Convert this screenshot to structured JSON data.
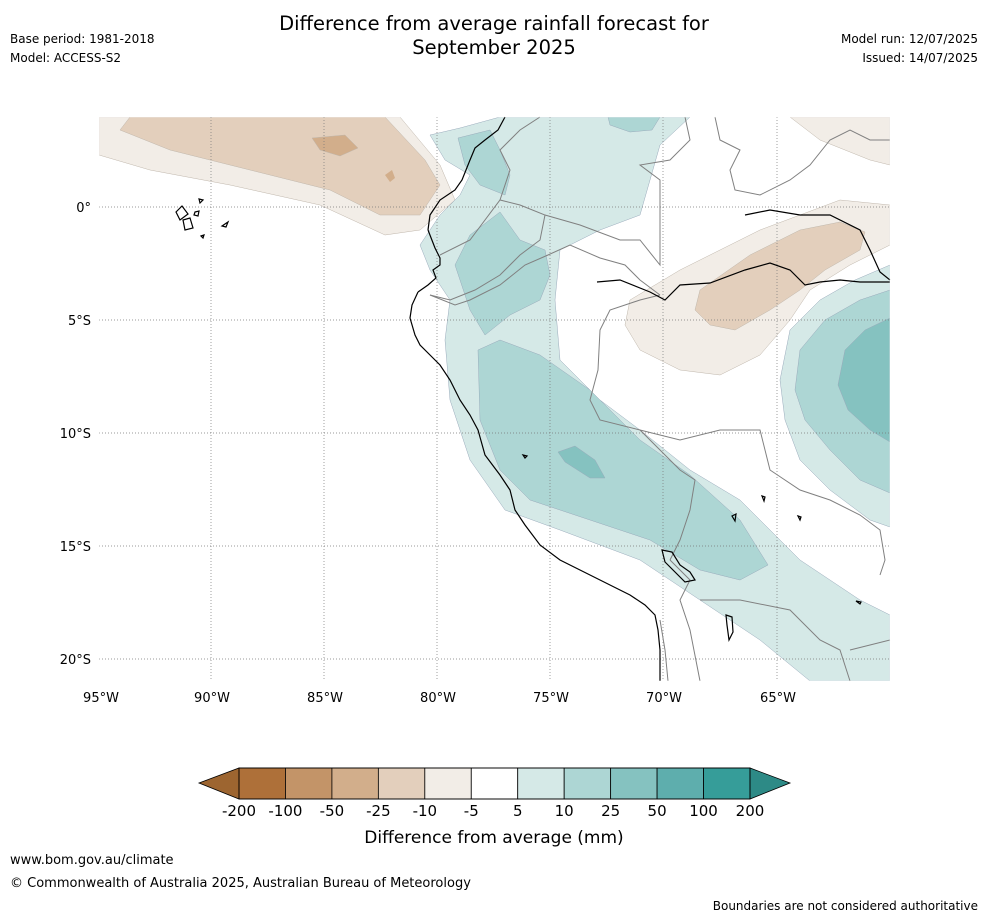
{
  "header": {
    "title_line1": "Difference from average rainfall forecast for",
    "title_line2": "September 2025",
    "base_period": "Base period: 1981-2018",
    "model": "Model: ACCESS-S2",
    "model_run": "Model run: 12/07/2025",
    "issued": "Issued: 14/07/2025"
  },
  "map": {
    "lon_labels": [
      "95°W",
      "90°W",
      "85°W",
      "80°W",
      "75°W",
      "70°W",
      "65°W"
    ],
    "lat_labels": [
      "0°",
      "5°S",
      "10°S",
      "15°S",
      "20°S"
    ],
    "extent": {
      "lon": [
        -95,
        -60
      ],
      "lat": [
        -21,
        4
      ]
    },
    "gridlines": "dotted"
  },
  "colorbar": {
    "label": "Difference from average (mm)",
    "ticks": [
      "-200",
      "-100",
      "-50",
      "-25",
      "-10",
      "-5",
      "5",
      "10",
      "25",
      "50",
      "100",
      "200"
    ],
    "colors": [
      "#ae7039",
      "#c39468",
      "#d2ae8b",
      "#e3cfbc",
      "#f2ede7",
      "#ffffff",
      "#d5e9e7",
      "#add6d4",
      "#85c2c0",
      "#5eaead",
      "#369d99"
    ],
    "low_extend_color": "#9d6530",
    "high_extend_color": "#2d8a86"
  },
  "footer": {
    "url": "www.bom.gov.au/climate",
    "copyright": "© Commonwealth of Australia 2025, Australian Bureau of Meteorology",
    "disclaimer": "Boundaries are not considered authoritative"
  }
}
